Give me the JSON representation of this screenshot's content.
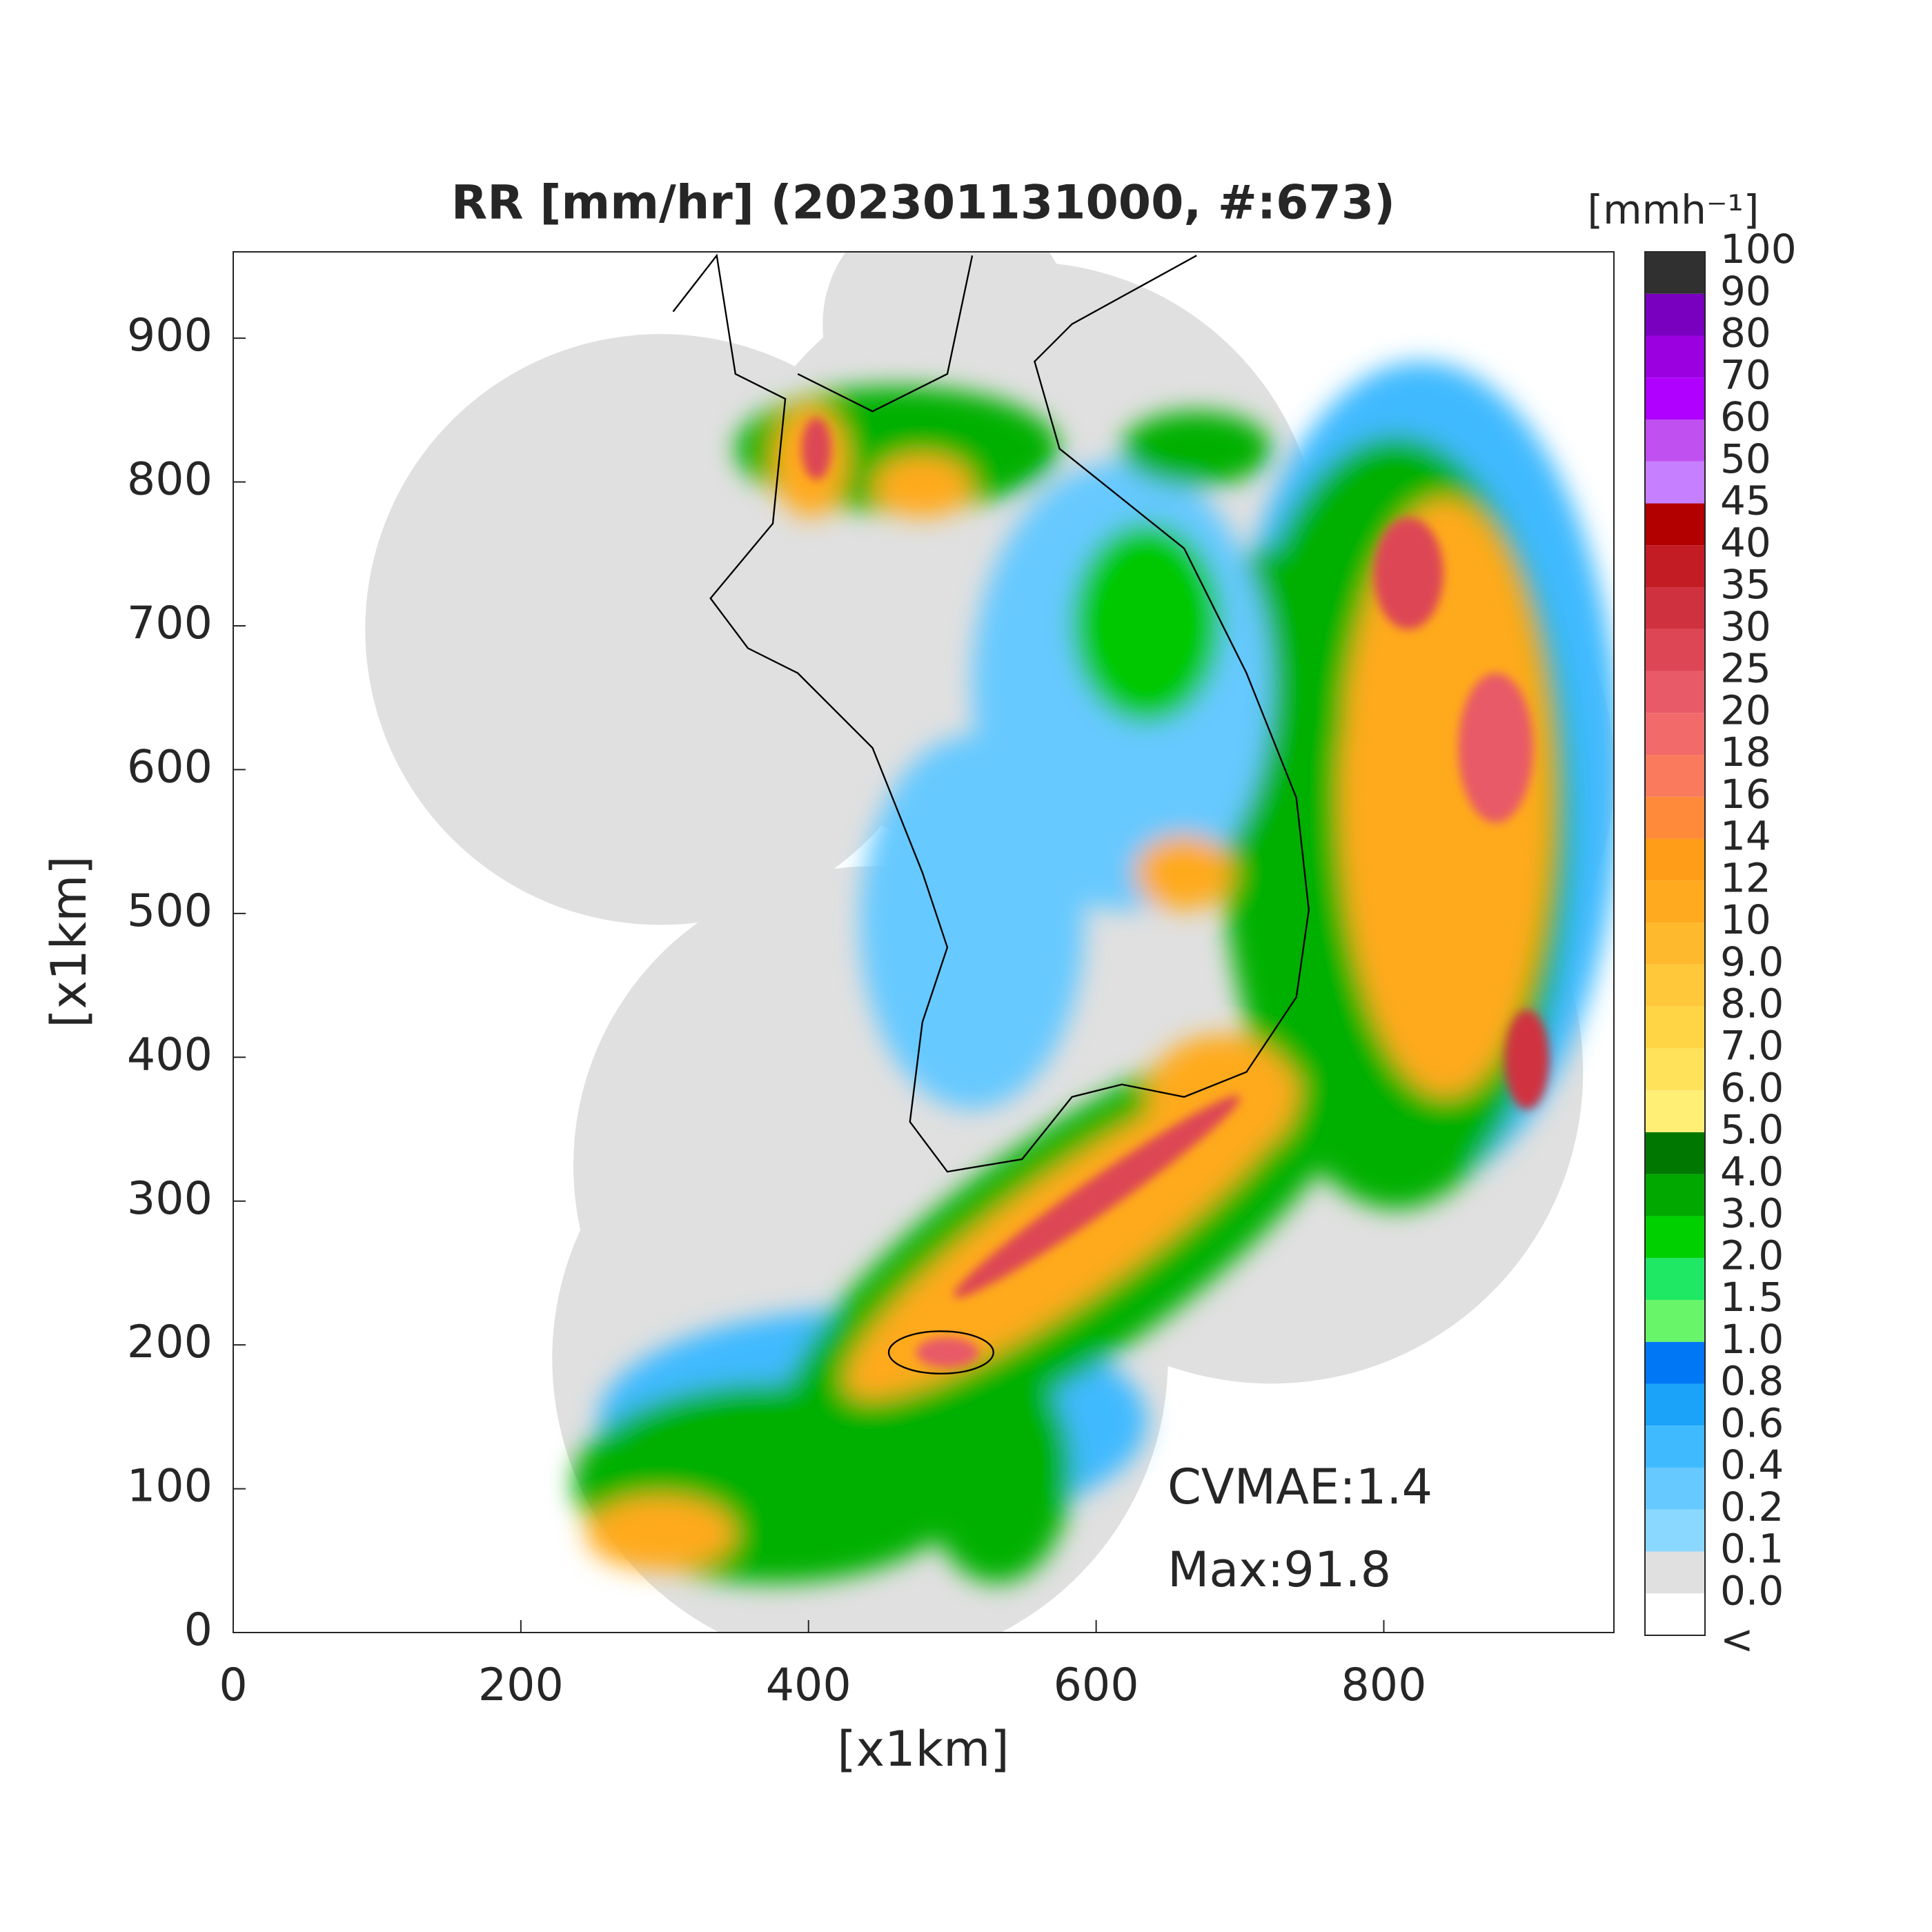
{
  "chart_data": {
    "type": "raster-map",
    "title": "RR [mm/hr] (202301131000, #:673)",
    "xlabel": "[x1km]",
    "ylabel": "[x1km]",
    "xlim": [
      0,
      960
    ],
    "ylim": [
      0,
      960
    ],
    "xticks": [
      0,
      200,
      400,
      600,
      800
    ],
    "yticks": [
      0,
      100,
      200,
      300,
      400,
      500,
      600,
      700,
      800,
      900
    ],
    "annotations": [
      "CVMAE:1.4",
      "Max:91.8"
    ],
    "colorbar": {
      "title": "[mmh⁻¹]",
      "below_label": "<",
      "levels": [
        {
          "value": 0,
          "label": "0.0"
        },
        0.1,
        0.2,
        0.4,
        0.6,
        0.8,
        {
          "value": 1,
          "label": "1.0"
        },
        1.5,
        {
          "value": 2,
          "label": "2.0"
        },
        {
          "value": 3,
          "label": "3.0"
        },
        {
          "value": 4,
          "label": "4.0"
        },
        {
          "value": 5,
          "label": "5.0"
        },
        {
          "value": 6,
          "label": "6.0"
        },
        {
          "value": 7,
          "label": "7.0"
        },
        {
          "value": 8,
          "label": "8.0"
        },
        {
          "value": 9,
          "label": "9.0"
        },
        10,
        12,
        14,
        16,
        18,
        20,
        25,
        30,
        35,
        40,
        45,
        50,
        60,
        70,
        80,
        90,
        100
      ],
      "colors": [
        "#ffffff",
        "#e0e0e0",
        "#8ad8ff",
        "#66c9ff",
        "#3fbaff",
        "#1aa3f8",
        "#0077f5",
        "#69f569",
        "#1ee864",
        "#00d000",
        "#00a800",
        "#007800",
        "#ffef74",
        "#ffe25a",
        "#ffd545",
        "#ffc83a",
        "#ffb92d",
        "#ffaa1f",
        "#ff9c18",
        "#ff8a3a",
        "#f97a5c",
        "#f26a6a",
        "#e85a67",
        "#dd4755",
        "#d0313f",
        "#c31c25",
        "#b20000",
        "#c57fff",
        "#c050f0",
        "#b000ff",
        "#9a00e0",
        "#7a00c0",
        "#303030"
      ]
    }
  }
}
